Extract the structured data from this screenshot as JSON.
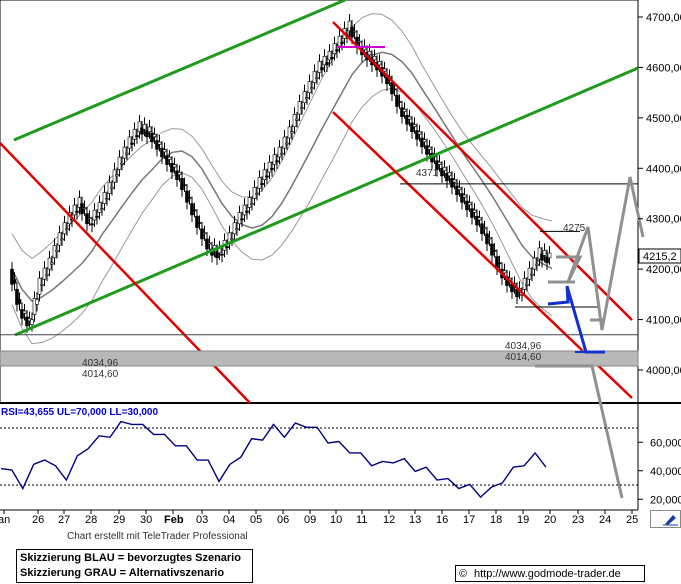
{
  "chart_data": [
    {
      "type": "candlestick",
      "title": "",
      "ylim": [
        3940,
        4730
      ],
      "y_ticks": [
        "4700,00",
        "4600,00",
        "4500,00",
        "4400,00",
        "4300,00",
        "4200,00",
        "4100,00",
        "4000,00"
      ],
      "y_tick_values": [
        4700,
        4600,
        4500,
        4400,
        4300,
        4200,
        4100,
        4000
      ],
      "x_ticks": [
        "an",
        "26",
        "27",
        "28",
        "29",
        "30",
        "Feb",
        "03",
        "04",
        "05",
        "06",
        "09",
        "10",
        "11",
        "12",
        "13",
        "16",
        "17",
        "18",
        "19",
        "20",
        "23",
        "24",
        "25"
      ],
      "last_value_label": "4215,2",
      "last_value": 4215,
      "close": [
        4200,
        4120,
        4090,
        4170,
        4210,
        4260,
        4300,
        4330,
        4290,
        4320,
        4360,
        4410,
        4450,
        4480,
        4470,
        4440,
        4410,
        4380,
        4330,
        4280,
        4240,
        4230,
        4260,
        4300,
        4330,
        4370,
        4400,
        4430,
        4470,
        4520,
        4560,
        4600,
        4620,
        4650,
        4680,
        4640,
        4620,
        4600,
        4570,
        4520,
        4490,
        4460,
        4430,
        4400,
        4380,
        4350,
        4320,
        4290,
        4250,
        4200,
        4170,
        4150,
        4190,
        4230,
        4220
      ],
      "annotations": [
        "4371",
        "4275",
        "4034,96",
        "4014,60"
      ],
      "annotation_values": [
        4371,
        4275,
        4034.96,
        4014.6
      ],
      "horizontal_levels": [
        4371,
        4275,
        4130,
        4070,
        4034.96,
        4014.6
      ],
      "bollinger_bands": true,
      "moving_average": true,
      "trend_channels": [
        "green-up-channel",
        "red-down-channel"
      ],
      "scenarios": {
        "blue": "bevorzugtes Szenario",
        "grey": "Alternativszenario"
      }
    },
    {
      "type": "line",
      "title": "RSI=43,655 UL=70,000 LL=30,000",
      "series": [
        {
          "name": "RSI",
          "values": [
            44,
            38,
            30,
            42,
            50,
            41,
            36,
            48,
            58,
            62,
            66,
            72,
            75,
            70,
            68,
            63,
            60,
            55,
            50,
            45,
            35,
            42,
            52,
            60,
            64,
            70,
            66,
            71,
            73,
            68,
            62,
            58,
            55,
            50,
            46,
            44,
            48,
            46,
            42,
            40,
            36,
            32,
            30,
            28,
            24,
            26,
            34,
            40,
            46,
            50,
            45
          ]
        }
      ],
      "ylim": [
        15,
        75
      ],
      "upper_limit": 70,
      "lower_limit": 30,
      "y_ticks": [
        "60,000",
        "40,000",
        "20,000"
      ],
      "y_tick_values": [
        60,
        40,
        20
      ]
    }
  ],
  "footer": {
    "credit": "Chart erstellt mit TeleTrader Professional",
    "legend_blue": "Skizzierung BLAU = bevorzugtes Szenario",
    "legend_grey": "Skizzierung GRAU = Alternativszenario",
    "url": "http://www.godmode-trader.de",
    "copyright": "©"
  },
  "colors": {
    "candle": "#000000",
    "bands": "#999999",
    "green_channel": "#1f9a1f",
    "red_channel": "#e00000",
    "blue_scenario": "#1030d0",
    "grey_scenario": "#909090",
    "rsi_line": "#000080",
    "magenta_mark": "#d000d0"
  }
}
